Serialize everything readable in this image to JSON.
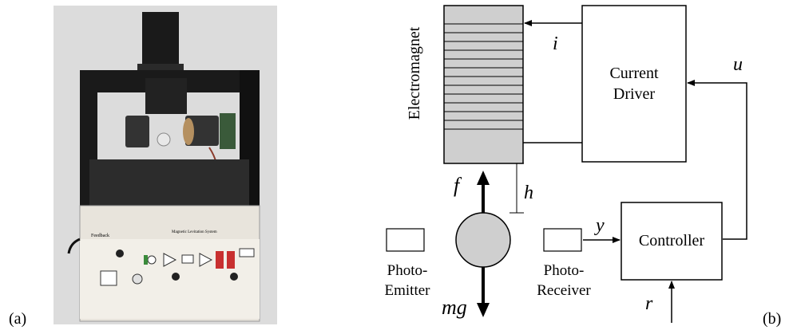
{
  "panel_a": {
    "label": "(a)",
    "panel_text": "Magnetic Levitation System",
    "brand_text": "Feedback"
  },
  "panel_b": {
    "label": "(b)",
    "electromagnet_label": "Electromagnet",
    "current_driver_label": [
      "Current",
      "Driver"
    ],
    "controller_label": "Controller",
    "photo_emitter_label": [
      "Photo-",
      "Emitter"
    ],
    "photo_receiver_label": [
      "Photo-",
      "Receiver"
    ],
    "signal_i": "i",
    "signal_u": "u",
    "signal_y": "y",
    "signal_r": "r",
    "force_f": "f",
    "force_mg": "mg",
    "gap_h": "h"
  },
  "colors": {
    "electromagnet_fill": "#cfcfcf",
    "ball_fill": "#cfcfcf",
    "photo_background": "#dcdcdc",
    "frame_dark": "#1a1a1a"
  }
}
